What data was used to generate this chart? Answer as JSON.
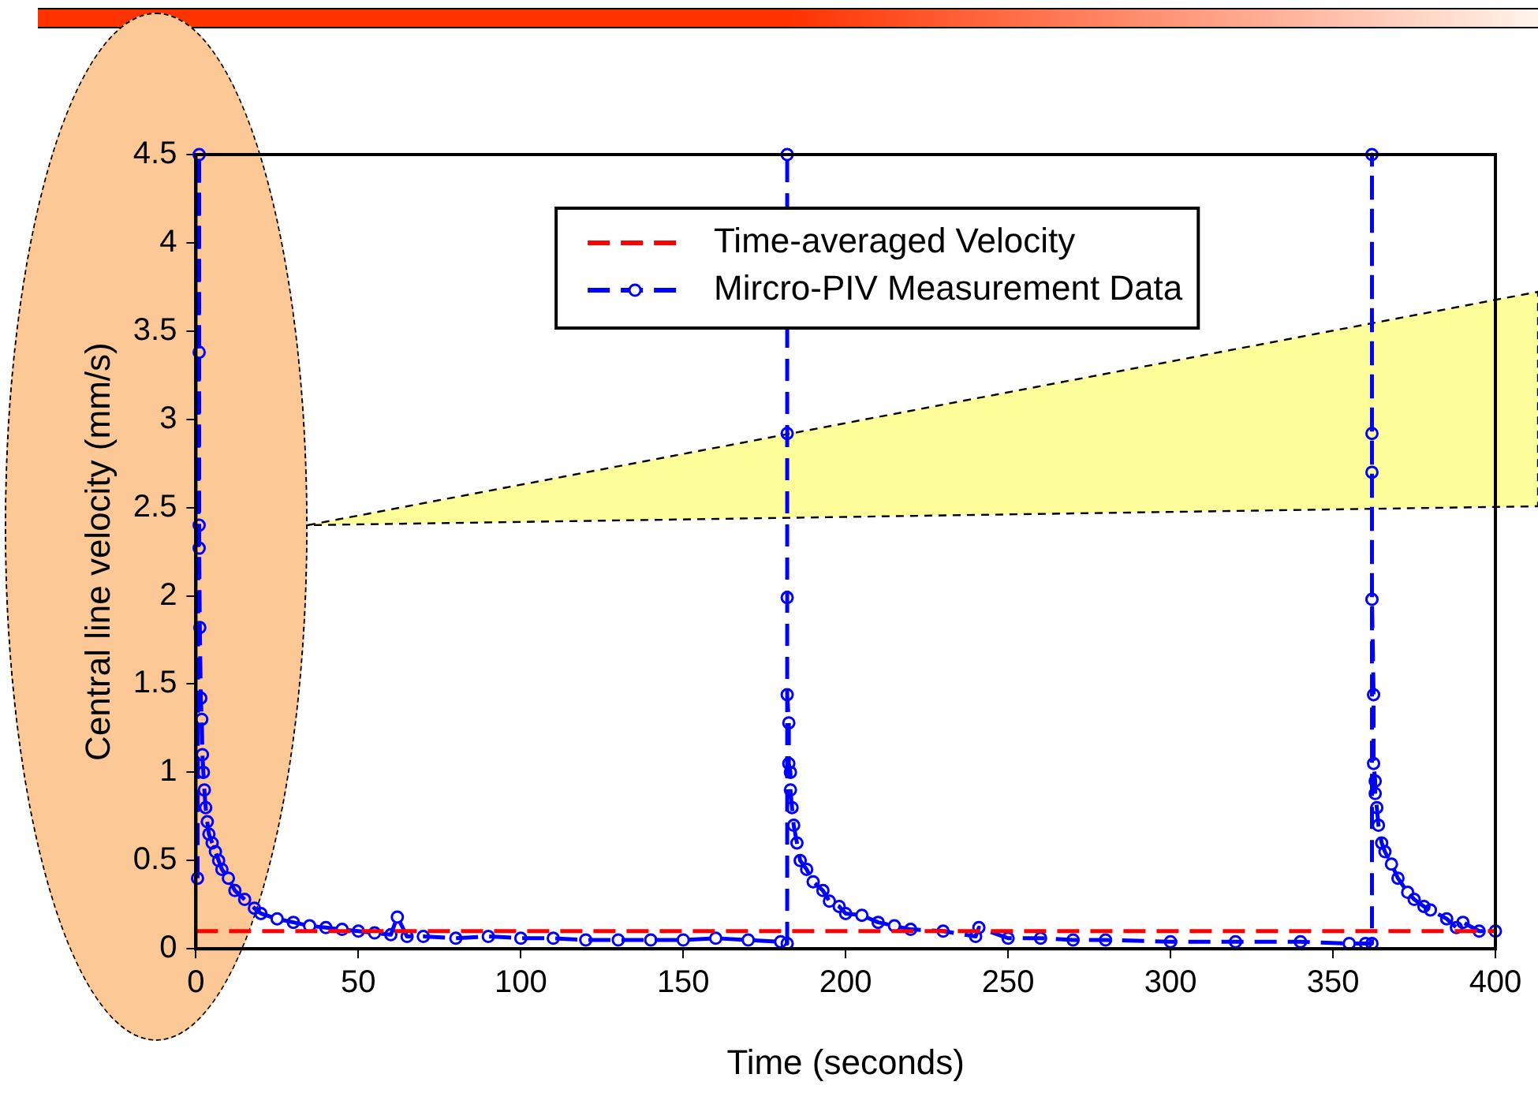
{
  "chart_data": {
    "type": "line",
    "xlabel": "Time (seconds)",
    "ylabel": "Central line velocity (mm/s)",
    "xlim": [
      0,
      400
    ],
    "ylim": [
      0,
      4.5
    ],
    "xticks": [
      0,
      50,
      100,
      150,
      200,
      250,
      300,
      350,
      400
    ],
    "yticks": [
      0,
      0.5,
      1,
      1.5,
      2,
      2.5,
      3,
      3.5,
      4,
      4.5
    ],
    "grid": false,
    "legend": "top",
    "line_style": "dashed",
    "series": [
      {
        "name": "Time-averaged Velocity",
        "color": "#ff0000",
        "marker": "none",
        "x": [
          0,
          400
        ],
        "values": [
          0.1,
          0.1
        ]
      },
      {
        "name": "Mircro-PIV Measurement Data",
        "color": "#0000ff",
        "marker": "circle",
        "x": [
          0.5,
          1,
          1,
          1,
          1,
          1.2,
          1.5,
          1.8,
          2,
          2.3,
          2.6,
          3,
          3.5,
          4,
          5,
          6,
          7,
          8,
          10,
          12,
          15,
          18,
          20,
          25,
          30,
          35,
          40,
          45,
          50,
          55,
          60,
          62,
          65,
          70,
          80,
          90,
          100,
          110,
          120,
          130,
          140,
          150,
          160,
          170,
          180,
          182,
          182,
          182,
          182,
          182,
          182.5,
          182.5,
          183,
          183,
          183.5,
          184,
          185,
          186,
          188,
          190,
          193,
          195,
          198,
          200,
          205,
          210,
          215,
          220,
          230,
          240,
          241,
          250,
          260,
          270,
          280,
          300,
          320,
          340,
          355,
          360,
          362,
          362,
          362,
          362,
          362,
          362.5,
          362.5,
          363,
          363,
          363.5,
          364,
          365,
          366,
          368,
          370,
          373,
          375,
          378,
          380,
          385,
          388,
          390,
          395,
          400
        ],
        "values": [
          0.4,
          4.5,
          3.38,
          2.4,
          2.27,
          1.82,
          1.42,
          1.3,
          1.1,
          1.0,
          0.9,
          0.8,
          0.72,
          0.65,
          0.6,
          0.55,
          0.5,
          0.45,
          0.4,
          0.33,
          0.28,
          0.23,
          0.2,
          0.17,
          0.15,
          0.13,
          0.12,
          0.11,
          0.1,
          0.09,
          0.08,
          0.18,
          0.07,
          0.07,
          0.06,
          0.07,
          0.06,
          0.06,
          0.05,
          0.05,
          0.05,
          0.05,
          0.06,
          0.05,
          0.04,
          0.03,
          4.5,
          2.92,
          1.99,
          1.44,
          1.28,
          1.05,
          1.0,
          0.9,
          0.8,
          0.7,
          0.6,
          0.5,
          0.45,
          0.38,
          0.33,
          0.27,
          0.24,
          0.2,
          0.19,
          0.15,
          0.13,
          0.11,
          0.1,
          0.07,
          0.12,
          0.06,
          0.06,
          0.05,
          0.05,
          0.04,
          0.04,
          0.04,
          0.03,
          0.03,
          0.03,
          4.5,
          2.92,
          2.7,
          1.98,
          1.44,
          1.05,
          0.95,
          0.88,
          0.8,
          0.7,
          0.6,
          0.55,
          0.48,
          0.4,
          0.32,
          0.28,
          0.24,
          0.22,
          0.17,
          0.12,
          0.15,
          0.1,
          0.1
        ]
      }
    ]
  }
}
